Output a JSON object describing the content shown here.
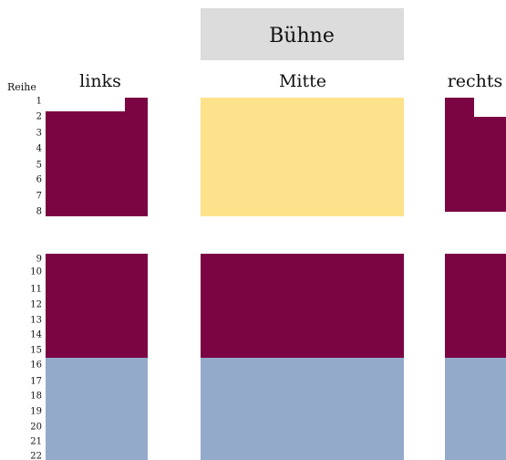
{
  "stage": "Bühne",
  "row_header": "Reihe",
  "sections": [
    "links",
    "Mitte",
    "rechts"
  ],
  "rows": [
    1,
    2,
    3,
    4,
    5,
    6,
    7,
    8,
    9,
    10,
    11,
    12,
    13,
    14,
    15,
    16,
    17,
    18,
    19,
    20,
    21,
    22
  ]
}
